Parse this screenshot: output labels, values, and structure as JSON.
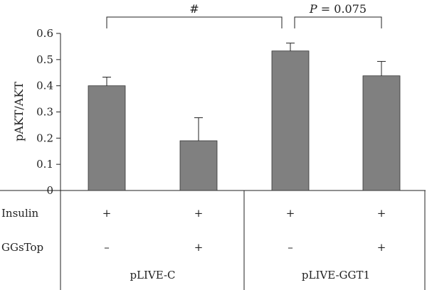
{
  "chart_data": {
    "type": "bar",
    "ylabel": "pAKT/AKT",
    "ylim": [
      0,
      0.6
    ],
    "yticks": [
      "0",
      "0.1",
      "0.2",
      "0.3",
      "0.4",
      "0.5",
      "0.6"
    ],
    "bar_color": "#808080",
    "values": [
      0.4,
      0.19,
      0.533,
      0.438
    ],
    "errors": [
      0.033,
      0.088,
      0.03,
      0.055
    ],
    "conditions": [
      {
        "label": "Insulin",
        "symbols": [
          "+",
          "+",
          "+",
          "+"
        ]
      },
      {
        "label": "GGsTop",
        "symbols": [
          "–",
          "+",
          "–",
          "+"
        ]
      }
    ],
    "groups": [
      {
        "label": "pLIVE-C",
        "bars": [
          0,
          1
        ]
      },
      {
        "label": "pLIVE-GGT1",
        "bars": [
          2,
          3
        ]
      }
    ],
    "annotations": [
      {
        "text": "#",
        "from": 0,
        "to": 2
      },
      {
        "text": "P = 0.075",
        "from": 2,
        "to": 3
      }
    ]
  }
}
